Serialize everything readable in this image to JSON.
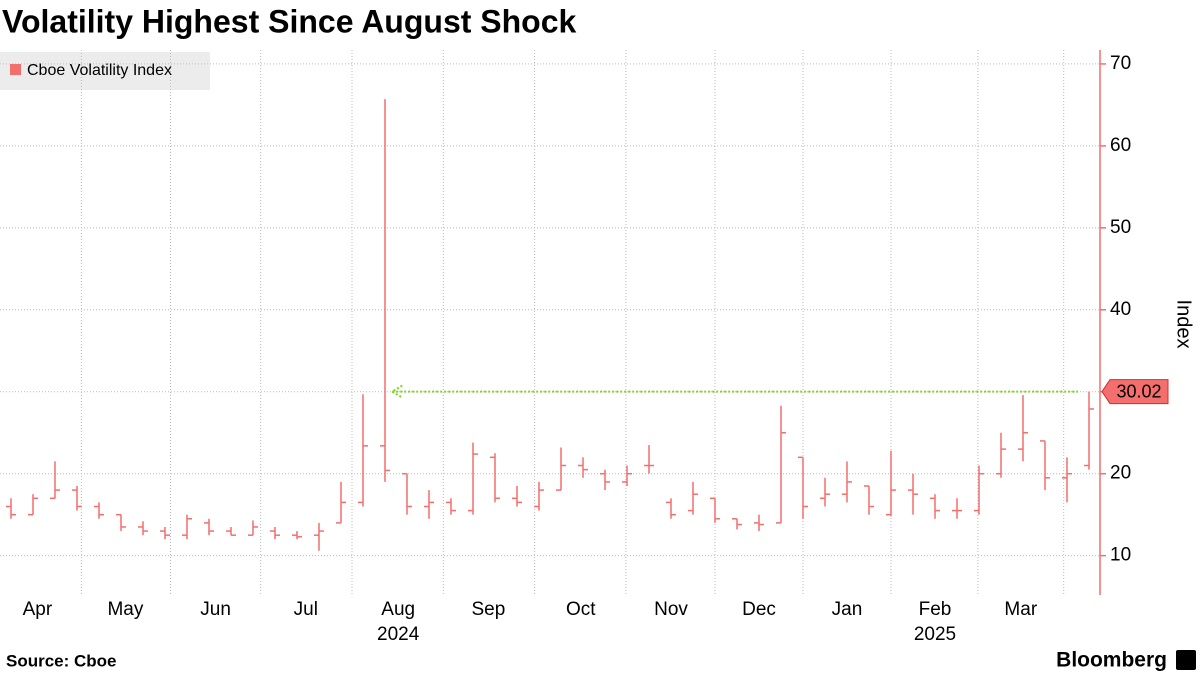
{
  "chart_data": {
    "type": "ohlc",
    "title": "Volatility Highest Since August Shock",
    "source": "Source: Cboe",
    "brand": "Bloomberg",
    "y_axis_label": "Index",
    "categories": [
      null,
      null,
      null,
      null,
      null,
      null,
      null,
      null,
      null,
      null,
      null,
      null,
      null,
      null,
      null,
      null,
      null,
      null,
      null,
      null,
      null,
      null,
      null,
      null,
      null,
      null,
      null,
      null,
      null,
      null,
      null,
      null,
      null,
      null,
      null,
      null,
      null,
      null,
      null,
      null,
      null,
      null,
      null,
      null,
      null,
      null,
      null,
      null,
      null,
      null
    ],
    "xlim": [
      -0.5,
      49.5
    ],
    "xticks": [
      {
        "value": 1.2,
        "label": "Apr"
      },
      {
        "value": 5.2,
        "label": "May"
      },
      {
        "value": 9.3,
        "label": "Jun"
      },
      {
        "value": 13.4,
        "label": "Jul"
      },
      {
        "value": 17.6,
        "label": "Aug",
        "year": "2024"
      },
      {
        "value": 21.7,
        "label": "Sep"
      },
      {
        "value": 25.9,
        "label": "Oct"
      },
      {
        "value": 30,
        "label": "Nov"
      },
      {
        "value": 34,
        "label": "Dec"
      },
      {
        "value": 38,
        "label": "Jan"
      },
      {
        "value": 42,
        "label": "Feb",
        "year": "2025"
      },
      {
        "value": 45.9,
        "label": "Mar"
      }
    ],
    "ylim": [
      5.2,
      71.7
    ],
    "yticks": [
      10,
      20,
      30,
      40,
      50,
      60,
      70
    ],
    "grid": true,
    "legend": "top-left",
    "series": [
      {
        "name": "Cboe Volatility Index",
        "color": "#f46e6e",
        "open": [
          16,
          15,
          17,
          18,
          16,
          15,
          13.5,
          13,
          12.5,
          14,
          13,
          12.5,
          13,
          12.5,
          12.5,
          14,
          16.5,
          23.4,
          20,
          16,
          16.5,
          15.5,
          22,
          17,
          16,
          18,
          21,
          20,
          19,
          21,
          16.5,
          15.5,
          17,
          14.5,
          14,
          14,
          22,
          17,
          17.5,
          18.5,
          15,
          18,
          17,
          15.5,
          15.5,
          20,
          23,
          24,
          19.5,
          21
        ],
        "high": [
          17,
          17.5,
          21.5,
          18.5,
          16.5,
          15,
          14.2,
          13.5,
          15,
          14.5,
          13.5,
          14.3,
          13.5,
          13,
          14,
          19,
          29.7,
          65.7,
          20,
          18,
          17,
          23.8,
          22.5,
          18.5,
          19,
          23.2,
          22,
          20.5,
          21,
          23.5,
          17,
          19,
          17,
          14.5,
          15,
          28.3,
          22,
          19.5,
          21.5,
          18.5,
          22.8,
          20,
          17.5,
          17,
          21,
          25,
          29.6,
          24,
          22,
          30.02
        ],
        "low": [
          14.5,
          15,
          17,
          15.5,
          14.5,
          13,
          12.5,
          12,
          12,
          12.5,
          12.5,
          12.5,
          12,
          12,
          10.6,
          14,
          16,
          19,
          15,
          14.5,
          15,
          15,
          16.5,
          16,
          15.5,
          18,
          19.5,
          18,
          18.5,
          20,
          14.5,
          15,
          14,
          13.2,
          13,
          14,
          14.5,
          16,
          16.5,
          15,
          14.8,
          15,
          14.5,
          14.5,
          15,
          19.5,
          21.5,
          18,
          16.5,
          20.5
        ],
        "close": [
          15,
          17,
          18,
          16,
          15,
          13.5,
          13,
          12.5,
          14.5,
          13,
          12.5,
          13.5,
          12.5,
          12.3,
          13,
          16.5,
          23.4,
          20.4,
          16,
          16.5,
          15.5,
          22.4,
          17,
          16.5,
          18,
          21,
          20.5,
          19,
          20,
          21,
          15,
          17.5,
          14.5,
          13.8,
          13.8,
          25,
          16,
          17.5,
          19,
          16,
          18,
          17.5,
          15.5,
          15.5,
          20,
          23,
          25,
          19.5,
          20,
          27.9
        ]
      }
    ],
    "reference_line": {
      "value": 30.02,
      "color": "#7ed321"
    }
  }
}
